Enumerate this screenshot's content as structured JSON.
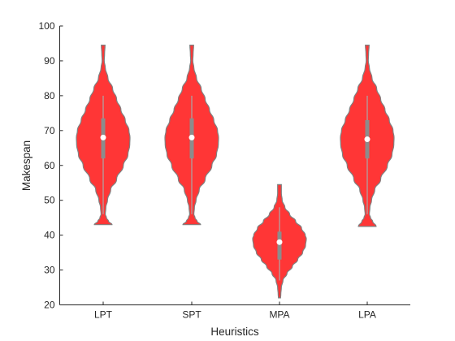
{
  "chart_data": {
    "type": "violin",
    "xlabel": "Heuristics",
    "ylabel": "Makespan",
    "ylim": [
      20,
      100
    ],
    "yticks": [
      20,
      30,
      40,
      50,
      60,
      70,
      80,
      90,
      100
    ],
    "grid": false,
    "categories": [
      "LPT",
      "SPT",
      "MPA",
      "LPA"
    ],
    "fill_color": "#ff2b2b",
    "edge_color": "#808080",
    "series": [
      {
        "category": "LPT",
        "min": 43,
        "max": 94.5,
        "q1": 62,
        "median": 68,
        "q3": 73.5,
        "whisker_low": 46,
        "whisker_high": 80,
        "density": [
          [
            43,
            0.33
          ],
          [
            44,
            0.2
          ],
          [
            45,
            0.12
          ],
          [
            46,
            0.08
          ],
          [
            48,
            0.1
          ],
          [
            50,
            0.16
          ],
          [
            53,
            0.28
          ],
          [
            56,
            0.5
          ],
          [
            60,
            0.75
          ],
          [
            63,
            0.92
          ],
          [
            66,
            0.99
          ],
          [
            68,
            1.0
          ],
          [
            70,
            0.96
          ],
          [
            73,
            0.82
          ],
          [
            76,
            0.66
          ],
          [
            79,
            0.5
          ],
          [
            82,
            0.35
          ],
          [
            85,
            0.18
          ],
          [
            88,
            0.08
          ],
          [
            90,
            0.04
          ],
          [
            92,
            0.05
          ],
          [
            94.5,
            0.07
          ]
        ]
      },
      {
        "category": "SPT",
        "min": 43,
        "max": 94.5,
        "q1": 62,
        "median": 68,
        "q3": 73.5,
        "whisker_low": 46,
        "whisker_high": 80,
        "density": [
          [
            43,
            0.33
          ],
          [
            44,
            0.2
          ],
          [
            45,
            0.12
          ],
          [
            46,
            0.08
          ],
          [
            48,
            0.1
          ],
          [
            50,
            0.16
          ],
          [
            53,
            0.28
          ],
          [
            56,
            0.5
          ],
          [
            60,
            0.75
          ],
          [
            63,
            0.92
          ],
          [
            66,
            0.99
          ],
          [
            68,
            1.0
          ],
          [
            70,
            0.96
          ],
          [
            73,
            0.82
          ],
          [
            76,
            0.66
          ],
          [
            79,
            0.5
          ],
          [
            82,
            0.35
          ],
          [
            85,
            0.18
          ],
          [
            88,
            0.08
          ],
          [
            90,
            0.04
          ],
          [
            92,
            0.05
          ],
          [
            94.5,
            0.07
          ]
        ]
      },
      {
        "category": "MPA",
        "min": 22,
        "max": 54.5,
        "q1": 33,
        "median": 38,
        "q3": 41,
        "whisker_low": 27,
        "whisker_high": 48,
        "density": [
          [
            22,
            0.04
          ],
          [
            23,
            0.05
          ],
          [
            25,
            0.07
          ],
          [
            27,
            0.13
          ],
          [
            29,
            0.28
          ],
          [
            31,
            0.48
          ],
          [
            33,
            0.68
          ],
          [
            35,
            0.86
          ],
          [
            37,
            0.97
          ],
          [
            39,
            1.0
          ],
          [
            40,
            0.96
          ],
          [
            42,
            0.82
          ],
          [
            44,
            0.6
          ],
          [
            46,
            0.38
          ],
          [
            48,
            0.2
          ],
          [
            50,
            0.1
          ],
          [
            52,
            0.07
          ],
          [
            54.5,
            0.07
          ]
        ]
      },
      {
        "category": "LPA",
        "min": 42.5,
        "max": 94.5,
        "q1": 62,
        "median": 67.5,
        "q3": 73,
        "whisker_low": 46,
        "whisker_high": 80,
        "density": [
          [
            42.5,
            0.33
          ],
          [
            44,
            0.2
          ],
          [
            45,
            0.12
          ],
          [
            46,
            0.08
          ],
          [
            48,
            0.1
          ],
          [
            50,
            0.16
          ],
          [
            53,
            0.28
          ],
          [
            56,
            0.5
          ],
          [
            60,
            0.75
          ],
          [
            63,
            0.92
          ],
          [
            66,
            0.99
          ],
          [
            68,
            1.0
          ],
          [
            70,
            0.96
          ],
          [
            73,
            0.82
          ],
          [
            76,
            0.66
          ],
          [
            79,
            0.5
          ],
          [
            82,
            0.35
          ],
          [
            85,
            0.18
          ],
          [
            88,
            0.08
          ],
          [
            90,
            0.04
          ],
          [
            92,
            0.05
          ],
          [
            94.5,
            0.07
          ]
        ]
      }
    ]
  }
}
